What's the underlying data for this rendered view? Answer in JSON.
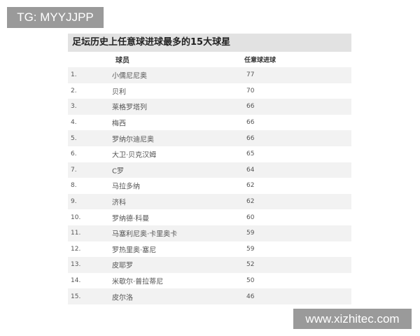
{
  "watermarks": {
    "top_left": "TG: MYYJJPP",
    "bottom_right": "www.xizhitec.com"
  },
  "table": {
    "title": "足坛历史上任意球进球最多的15大球星",
    "headers": {
      "player": "球员",
      "goals": "任意球进球"
    },
    "rows": [
      {
        "rank": "1.",
        "player": "小儒尼尼奥",
        "goals": "77"
      },
      {
        "rank": "2.",
        "player": "贝利",
        "goals": "70"
      },
      {
        "rank": "3.",
        "player": "莱格罗塔列",
        "goals": "66"
      },
      {
        "rank": "4.",
        "player": "梅西",
        "goals": "66"
      },
      {
        "rank": "5.",
        "player": "罗纳尔迪尼奥",
        "goals": "66"
      },
      {
        "rank": "6.",
        "player": "大卫·贝克汉姆",
        "goals": "65"
      },
      {
        "rank": "7.",
        "player": "C罗",
        "goals": "64"
      },
      {
        "rank": "8.",
        "player": "马拉多纳",
        "goals": "62"
      },
      {
        "rank": "9.",
        "player": "济科",
        "goals": "62"
      },
      {
        "rank": "10.",
        "player": "罗纳德·科曼",
        "goals": "60"
      },
      {
        "rank": "11.",
        "player": "马塞利尼奥·卡里奥卡",
        "goals": "59"
      },
      {
        "rank": "12.",
        "player": "罗热里奥·塞尼",
        "goals": "59"
      },
      {
        "rank": "13.",
        "player": "皮耶罗",
        "goals": "52"
      },
      {
        "rank": "14.",
        "player": "米歇尔·普拉蒂尼",
        "goals": "50"
      },
      {
        "rank": "15.",
        "player": "皮尔洛",
        "goals": "46"
      }
    ]
  }
}
